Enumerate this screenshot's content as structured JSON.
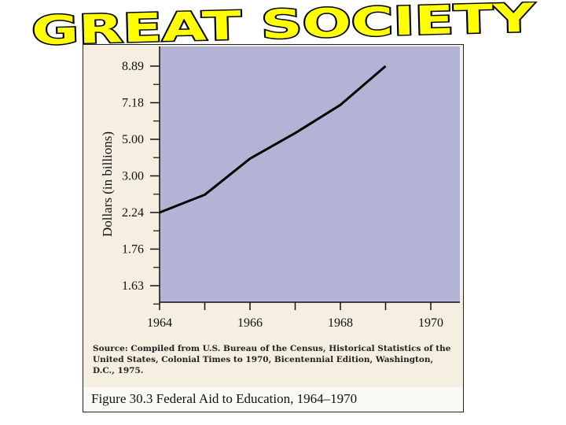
{
  "banner": {
    "title": "GREAT SOCIETY"
  },
  "colors": {
    "plot_bg": "#b3b3d6",
    "panel_bg": "#f4efe0",
    "banner_fill": "#ffff00",
    "line": "#000000"
  },
  "chart_data": {
    "type": "line",
    "title": "Figure 30.3  Federal Aid to Education, 1964–1970",
    "ylabel": "Dollars (in billions)",
    "xlabel": "",
    "x_ticks": [
      "1964",
      "1966",
      "1968",
      "1970"
    ],
    "y_ticks": [
      "8.89",
      "7.18",
      "5.00",
      "3.00",
      "2.24",
      "1.76",
      "1.63"
    ],
    "y_scale": "categorical-ticks",
    "grid": false,
    "series": [
      {
        "x": [
          1964,
          1965,
          1966,
          1967,
          1968,
          1969
        ],
        "y": [
          2.24,
          2.61,
          3.94,
          5.37,
          7.05,
          8.89
        ]
      }
    ],
    "source": "Source: Compiled from U.S. Bureau of the Census, Historical Statistics of the United States, Colonial Times to 1970, Bicentennial Edition, Washington, D.C., 1975."
  }
}
